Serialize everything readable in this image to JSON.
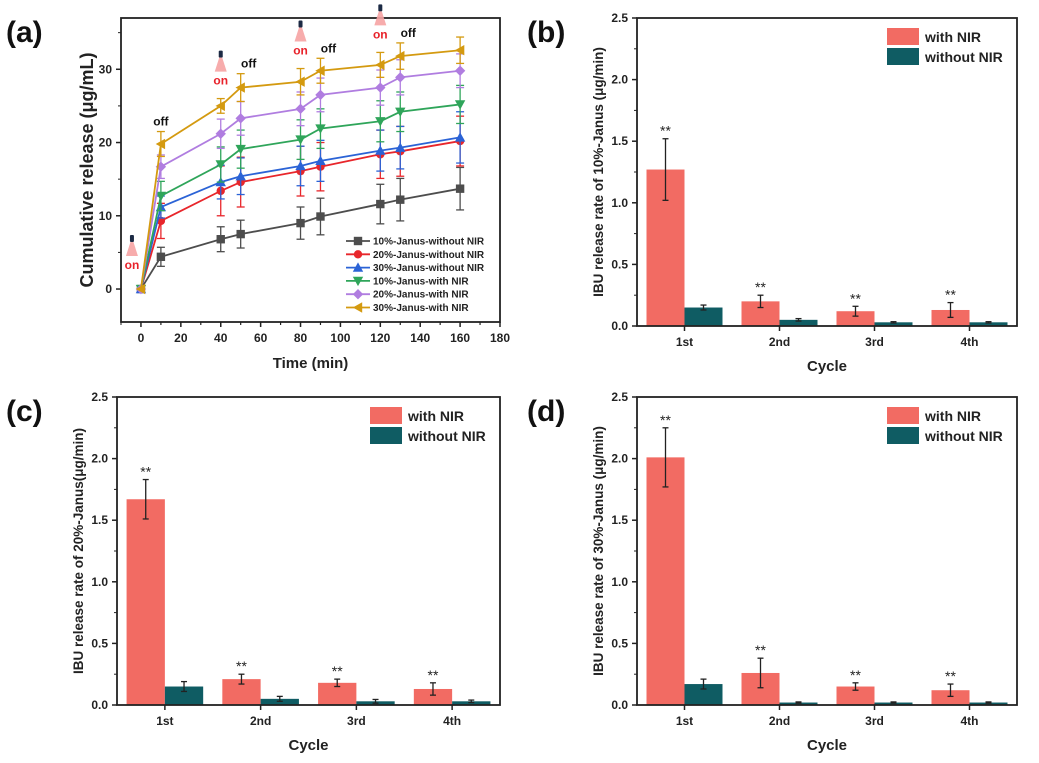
{
  "chart_data": [
    {
      "panel": "(a)",
      "type": "line",
      "title": "",
      "xlabel": "Time (min)",
      "ylabel": "Cumulative release (μg/mL)",
      "xlim": [
        -10,
        180
      ],
      "ylim": [
        -4.5,
        37
      ],
      "xticks": [
        0,
        20,
        40,
        60,
        80,
        100,
        120,
        140,
        160,
        180
      ],
      "yticks": [
        0,
        10,
        20,
        30
      ],
      "grid": false,
      "legend_position": "bottom-right",
      "x": [
        0,
        10,
        40,
        50,
        80,
        90,
        120,
        130,
        160
      ],
      "series": [
        {
          "name": "10%-Janus-without NIR",
          "color": "#4d4d4d",
          "marker": "square",
          "values": [
            0,
            4.4,
            6.8,
            7.5,
            9.0,
            9.9,
            11.6,
            12.2,
            13.7
          ],
          "errors": [
            0,
            1.3,
            1.7,
            1.9,
            2.2,
            2.5,
            2.7,
            2.9,
            2.9
          ]
        },
        {
          "name": "20%-Janus-without NIR",
          "color": "#e8262b",
          "marker": "circle",
          "values": [
            0,
            9.3,
            13.4,
            14.6,
            16.1,
            16.7,
            18.4,
            18.8,
            20.2
          ],
          "errors": [
            0,
            2.4,
            3.4,
            3.4,
            3.4,
            3.3,
            3.3,
            3.4,
            3.4
          ]
        },
        {
          "name": "30%-Janus-without NIR",
          "color": "#2b63d6",
          "marker": "triangle-up",
          "values": [
            0,
            11.2,
            14.6,
            15.4,
            16.8,
            17.5,
            18.9,
            19.3,
            20.7
          ],
          "errors": [
            0,
            1.5,
            2.3,
            2.5,
            2.7,
            2.8,
            2.8,
            2.9,
            3.5
          ]
        },
        {
          "name": "10%-Janus-with NIR",
          "color": "#2fa55a",
          "marker": "triangle-down",
          "values": [
            0,
            12.7,
            17.0,
            19.1,
            20.4,
            21.9,
            22.9,
            24.2,
            25.2
          ],
          "errors": [
            0,
            2.0,
            2.4,
            2.6,
            2.7,
            2.7,
            2.8,
            2.7,
            2.6
          ]
        },
        {
          "name": "20%-Janus-with NIR",
          "color": "#b07de0",
          "marker": "diamond",
          "values": [
            0,
            16.7,
            21.2,
            23.3,
            24.6,
            26.5,
            27.5,
            28.9,
            29.8
          ],
          "errors": [
            0,
            1.6,
            2.0,
            2.3,
            2.3,
            2.3,
            2.4,
            2.4,
            2.3
          ]
        },
        {
          "name": "30%-Janus-with NIR",
          "color": "#d49a10",
          "marker": "triangle-left",
          "values": [
            0,
            19.8,
            25.0,
            27.5,
            28.3,
            29.8,
            30.6,
            31.8,
            32.6
          ],
          "errors": [
            0,
            1.7,
            1.0,
            1.9,
            1.8,
            1.7,
            1.7,
            1.8,
            1.8
          ]
        }
      ],
      "annotations": [
        {
          "text": "on",
          "x": 0,
          "type": "on"
        },
        {
          "text": "off",
          "x": 10,
          "type": "off"
        },
        {
          "text": "on",
          "x": 40,
          "type": "on"
        },
        {
          "text": "off",
          "x": 50,
          "type": "off"
        },
        {
          "text": "on",
          "x": 80,
          "type": "on"
        },
        {
          "text": "off",
          "x": 90,
          "type": "off"
        },
        {
          "text": "on",
          "x": 120,
          "type": "on"
        },
        {
          "text": "off",
          "x": 130,
          "type": "off"
        }
      ]
    },
    {
      "panel": "(b)",
      "type": "bar",
      "xlabel": "Cycle",
      "ylabel": "IBU release rate of 10%-Janus (μg/min)",
      "categories": [
        "1st",
        "2nd",
        "3rd",
        "4th"
      ],
      "ylim": [
        0,
        2.5
      ],
      "yticks": [
        0.0,
        0.5,
        1.0,
        1.5,
        2.0,
        2.5
      ],
      "legend_position": "top-right",
      "series": [
        {
          "name": "with NIR",
          "color": "#f26b63",
          "values": [
            1.27,
            0.2,
            0.12,
            0.13
          ],
          "errors": [
            0.25,
            0.05,
            0.04,
            0.06
          ],
          "significance": [
            "**",
            "**",
            "**",
            "**"
          ]
        },
        {
          "name": "without NIR",
          "color": "#0f5c63",
          "values": [
            0.15,
            0.05,
            0.03,
            0.03
          ],
          "errors": [
            0.02,
            0.01,
            0.005,
            0.005
          ]
        }
      ]
    },
    {
      "panel": "(c)",
      "type": "bar",
      "xlabel": "Cycle",
      "ylabel": "IBU release rate of 20%-Janus(μg/min)",
      "categories": [
        "1st",
        "2nd",
        "3rd",
        "4th"
      ],
      "ylim": [
        0,
        2.5
      ],
      "yticks": [
        0.0,
        0.5,
        1.0,
        1.5,
        2.0,
        2.5
      ],
      "legend_position": "top-right",
      "series": [
        {
          "name": "with NIR",
          "color": "#f26b63",
          "values": [
            1.67,
            0.21,
            0.18,
            0.13
          ],
          "errors": [
            0.16,
            0.04,
            0.03,
            0.05
          ],
          "significance": [
            "**",
            "**",
            "**",
            "**"
          ]
        },
        {
          "name": "without NIR",
          "color": "#0f5c63",
          "values": [
            0.15,
            0.05,
            0.03,
            0.03
          ],
          "errors": [
            0.04,
            0.02,
            0.015,
            0.01
          ]
        }
      ]
    },
    {
      "panel": "(d)",
      "type": "bar",
      "xlabel": "Cycle",
      "ylabel": "IBU release rate of 30%-Janus (μg/min)",
      "categories": [
        "1st",
        "2nd",
        "3rd",
        "4th"
      ],
      "ylim": [
        0,
        2.5
      ],
      "yticks": [
        0.0,
        0.5,
        1.0,
        1.5,
        2.0,
        2.5
      ],
      "legend_position": "top-right",
      "series": [
        {
          "name": "with NIR",
          "color": "#f26b63",
          "values": [
            2.01,
            0.26,
            0.15,
            0.12
          ],
          "errors": [
            0.24,
            0.12,
            0.03,
            0.05
          ],
          "significance": [
            "**",
            "**",
            "**",
            "**"
          ]
        },
        {
          "name": "without NIR",
          "color": "#0f5c63",
          "values": [
            0.17,
            0.02,
            0.02,
            0.02
          ],
          "errors": [
            0.04,
            0.005,
            0.005,
            0.005
          ]
        }
      ]
    }
  ]
}
